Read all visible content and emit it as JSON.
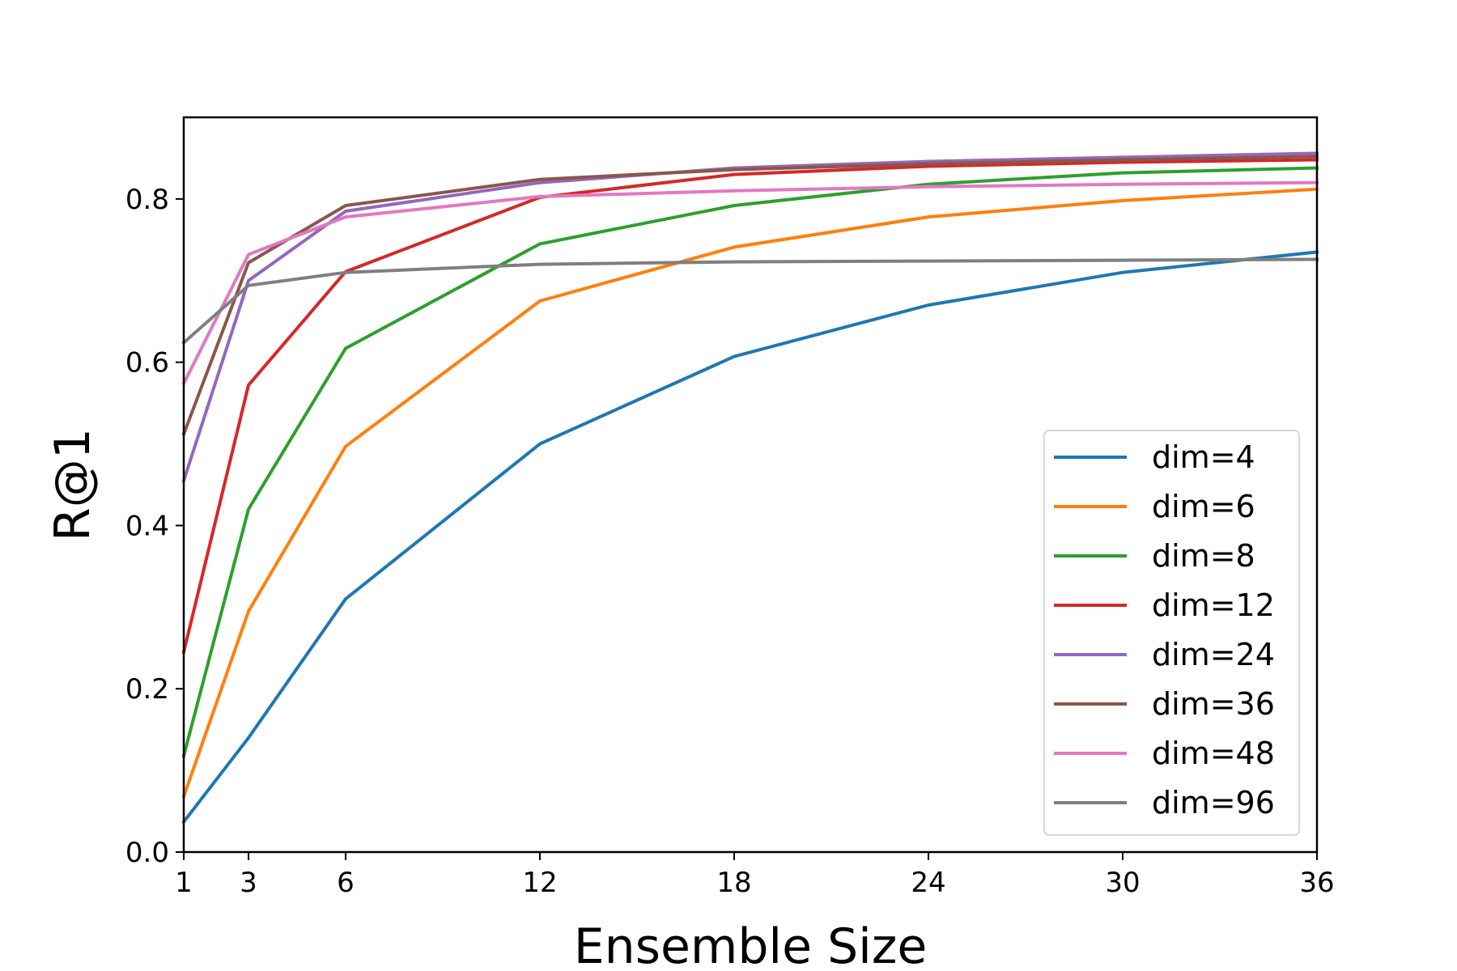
{
  "chart_data": {
    "type": "line",
    "xlabel": "Ensemble Size",
    "ylabel": "R@1",
    "xlim": [
      1,
      36
    ],
    "ylim": [
      0,
      0.9
    ],
    "x": [
      1,
      3,
      6,
      12,
      18,
      24,
      30,
      36
    ],
    "xticks": [
      1,
      3,
      6,
      12,
      18,
      24,
      30,
      36
    ],
    "yticks": [
      0.0,
      0.2,
      0.4,
      0.6,
      0.8
    ],
    "ytick_labels": [
      "0.0",
      "0.2",
      "0.4",
      "0.6",
      "0.8"
    ],
    "grid": false,
    "legend_position": "lower-right",
    "series": [
      {
        "name": "dim=4",
        "color": "#1f77b4",
        "values": [
          0.037,
          0.14,
          0.31,
          0.5,
          0.607,
          0.67,
          0.71,
          0.735
        ]
      },
      {
        "name": "dim=6",
        "color": "#ff7f0e",
        "values": [
          0.068,
          0.295,
          0.497,
          0.675,
          0.741,
          0.778,
          0.798,
          0.812
        ]
      },
      {
        "name": "dim=8",
        "color": "#2ca02c",
        "values": [
          0.118,
          0.42,
          0.617,
          0.745,
          0.792,
          0.818,
          0.832,
          0.838
        ]
      },
      {
        "name": "dim=12",
        "color": "#d62728",
        "values": [
          0.245,
          0.572,
          0.711,
          0.802,
          0.83,
          0.84,
          0.845,
          0.848
        ]
      },
      {
        "name": "dim=24",
        "color": "#9467bd",
        "values": [
          0.455,
          0.7,
          0.785,
          0.82,
          0.838,
          0.846,
          0.851,
          0.856
        ]
      },
      {
        "name": "dim=36",
        "color": "#8c564b",
        "values": [
          0.512,
          0.722,
          0.792,
          0.824,
          0.836,
          0.843,
          0.848,
          0.852
        ]
      },
      {
        "name": "dim=48",
        "color": "#e377c2",
        "values": [
          0.574,
          0.732,
          0.778,
          0.803,
          0.81,
          0.815,
          0.818,
          0.82
        ]
      },
      {
        "name": "dim=96",
        "color": "#7f7f7f",
        "values": [
          0.624,
          0.694,
          0.71,
          0.72,
          0.723,
          0.724,
          0.725,
          0.726
        ]
      }
    ]
  }
}
